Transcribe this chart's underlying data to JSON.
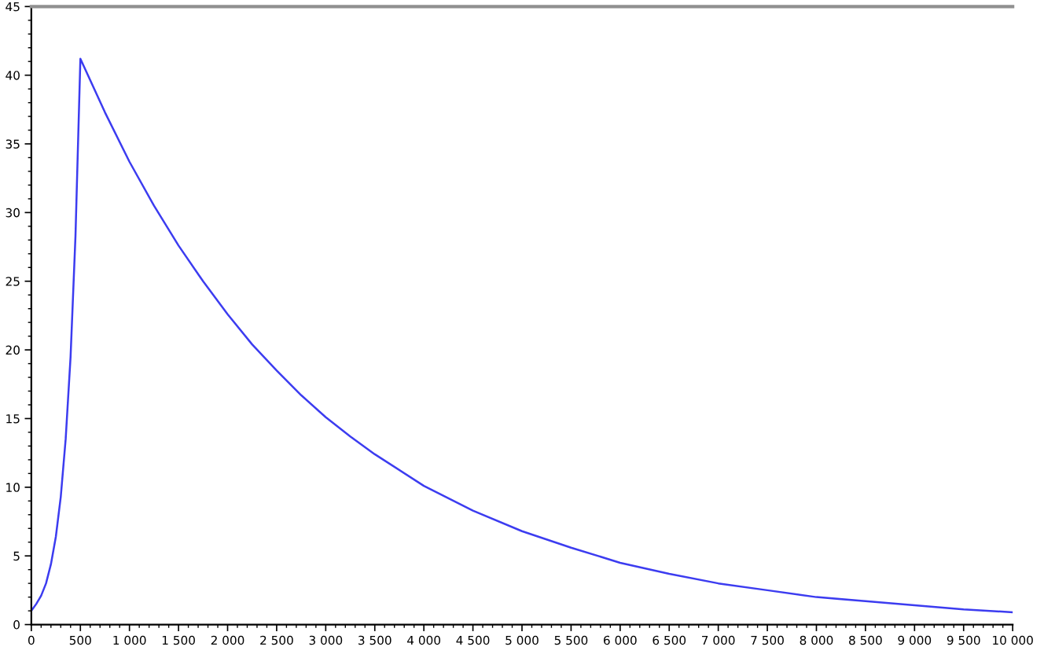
{
  "chart_data": {
    "type": "line",
    "x": [
      0,
      50,
      100,
      150,
      200,
      250,
      300,
      350,
      400,
      450,
      500,
      750,
      1000,
      1250,
      1500,
      1750,
      2000,
      2250,
      2500,
      2750,
      3000,
      3250,
      3500,
      4000,
      4500,
      5000,
      5500,
      6000,
      6500,
      7000,
      7500,
      8000,
      8500,
      9000,
      9500,
      10000
    ],
    "series": [
      {
        "color": "#3c3cf0",
        "values": [
          1.0,
          1.5,
          2.1,
          3.0,
          4.4,
          6.4,
          9.3,
          13.5,
          19.5,
          28.3,
          41.2,
          37.3,
          33.7,
          30.5,
          27.6,
          25.0,
          22.6,
          20.4,
          18.5,
          16.7,
          15.1,
          13.7,
          12.4,
          10.1,
          8.3,
          6.8,
          5.6,
          4.5,
          3.7,
          3.0,
          2.5,
          2.0,
          1.7,
          1.4,
          1.1,
          0.9
        ]
      }
    ],
    "xlim": [
      0,
      10000
    ],
    "ylim": [
      0,
      45
    ],
    "xticks": [
      0,
      500,
      {
        "value": 1000,
        "label": "1 000"
      },
      {
        "value": 1500,
        "label": "1 500"
      },
      {
        "value": 2000,
        "label": "2 000"
      },
      {
        "value": 2500,
        "label": "2 500"
      },
      {
        "value": 3000,
        "label": "3 000"
      },
      {
        "value": 3500,
        "label": "3 500"
      },
      {
        "value": 4000,
        "label": "4 000"
      },
      {
        "value": 4500,
        "label": "4 500"
      },
      {
        "value": 5000,
        "label": "5 000"
      },
      {
        "value": 5500,
        "label": "5 500"
      },
      {
        "value": 6000,
        "label": "6 000"
      },
      {
        "value": 6500,
        "label": "6 500"
      },
      {
        "value": 7000,
        "label": "7 000"
      },
      {
        "value": 7500,
        "label": "7 500"
      },
      {
        "value": 8000,
        "label": "8 000"
      },
      {
        "value": 8500,
        "label": "8 500"
      },
      {
        "value": 9000,
        "label": "9 000"
      },
      {
        "value": 9500,
        "label": "9 500"
      },
      {
        "value": 10000,
        "label": "10 000"
      }
    ],
    "yticks": [
      0,
      5,
      10,
      15,
      20,
      25,
      30,
      35,
      40,
      45
    ],
    "grid": false,
    "legend": false,
    "marker": "none",
    "line_style": "solid"
  }
}
